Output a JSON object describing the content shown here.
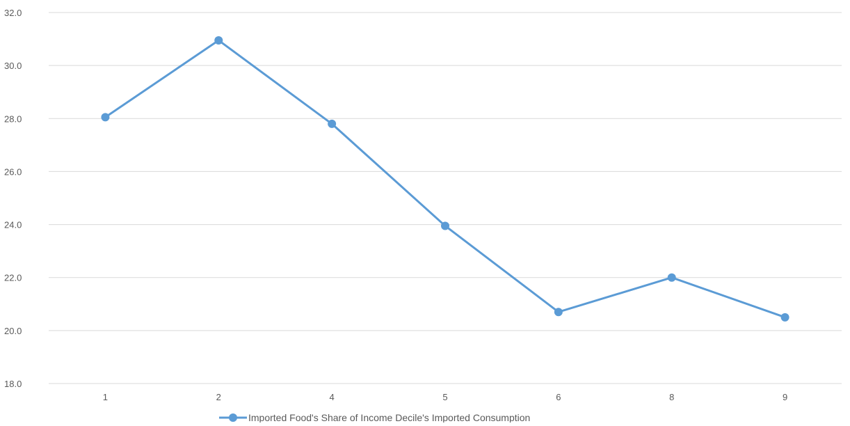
{
  "chart_data": {
    "type": "line",
    "title": "",
    "xlabel": "",
    "ylabel": "",
    "categories": [
      "1",
      "2",
      "4",
      "5",
      "6",
      "8",
      "9"
    ],
    "series": [
      {
        "name": "Imported Food's Share of Income Decile's Imported Consumption",
        "values": [
          28.05,
          30.95,
          27.8,
          23.95,
          20.7,
          22.0,
          20.5
        ],
        "color": "#5b9bd5"
      }
    ],
    "ylim": [
      18.0,
      32.0
    ],
    "yticks": [
      "18.0",
      "20.0",
      "22.0",
      "24.0",
      "26.0",
      "28.0",
      "30.0",
      "32.0"
    ],
    "grid": true,
    "legend_position": "bottom",
    "markers": true
  }
}
